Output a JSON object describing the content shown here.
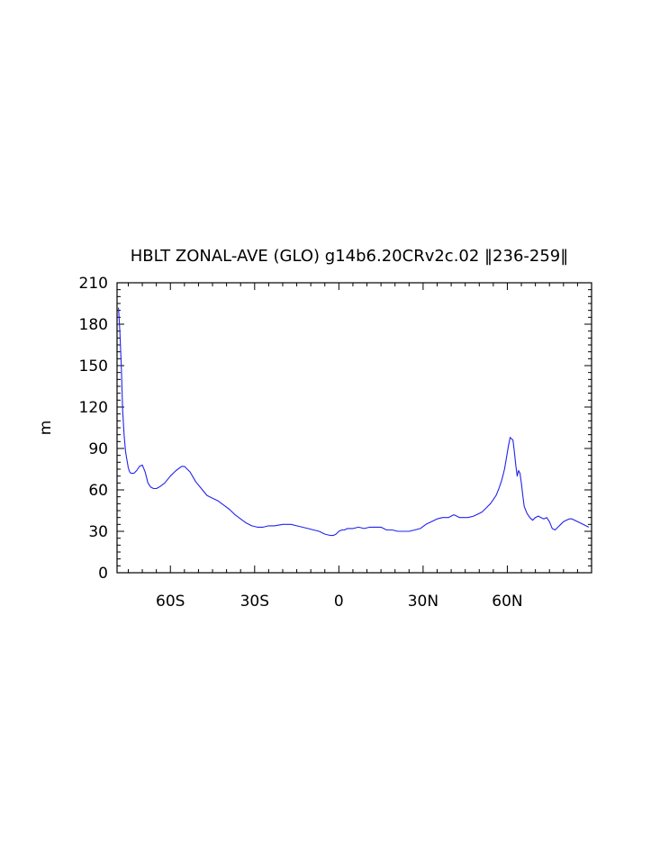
{
  "chart_data": {
    "type": "line",
    "title": "HBLT ZONAL-AVE (GLO) g14b6.20CRv2c.02 ‖236-259‖",
    "xlabel": "",
    "ylabel": "m",
    "xlim": [
      -79,
      90
    ],
    "ylim": [
      0,
      210
    ],
    "x_ticks": [
      -60,
      -30,
      0,
      30,
      60
    ],
    "x_tick_labels": [
      "60S",
      "30S",
      "0",
      "30N",
      "60N"
    ],
    "y_ticks": [
      0,
      30,
      60,
      90,
      120,
      150,
      180,
      210
    ],
    "y_tick_labels": [
      "0",
      "30",
      "60",
      "90",
      "120",
      "150",
      "180",
      "210"
    ],
    "grid": false,
    "line_color": "#2222ee",
    "series": [
      {
        "x": [
          -78.5,
          -78,
          -77.5,
          -77,
          -76.5,
          -76,
          -75.5,
          -75,
          -74.5,
          -74,
          -73.5,
          -73,
          -72,
          -71,
          -70,
          -69,
          -68,
          -67,
          -66,
          -65,
          -64,
          -62,
          -60,
          -58,
          -56,
          -55,
          -53,
          -51,
          -49,
          -47,
          -45,
          -43,
          -41,
          -39,
          -37,
          -35,
          -33,
          -31,
          -29,
          -27,
          -25,
          -23,
          -20,
          -17,
          -15,
          -13,
          -11,
          -9,
          -7,
          -5,
          -3,
          -2,
          -1,
          0,
          1,
          2,
          3,
          5,
          7,
          9,
          11,
          13,
          15,
          17,
          19,
          21,
          23,
          25,
          27,
          29,
          31,
          33,
          35,
          37,
          39,
          40,
          41,
          42,
          43,
          44,
          46,
          48,
          50,
          51,
          52,
          53,
          54,
          55,
          56,
          57,
          58,
          58.5,
          59,
          59.5,
          60,
          60.5,
          61,
          61.5,
          62,
          62.5,
          63,
          63.5,
          64,
          64.5,
          65,
          65.5,
          66,
          67,
          68,
          69,
          70,
          71,
          72,
          73,
          74,
          75,
          76,
          77,
          78,
          79,
          80,
          81,
          82,
          83,
          84,
          85,
          86,
          87,
          88,
          89
        ],
        "y": [
          192,
          175,
          150,
          118,
          100,
          88,
          82,
          76,
          73,
          72,
          72,
          72,
          74,
          77,
          78,
          73,
          65,
          62,
          61,
          61,
          62,
          65,
          70,
          74,
          77,
          77,
          73,
          66,
          61,
          56,
          54,
          52,
          49,
          46,
          42,
          39,
          36,
          34,
          33,
          33,
          34,
          34,
          35,
          35,
          34,
          33,
          32,
          31,
          30,
          28,
          27,
          27,
          28,
          30,
          31,
          31,
          32,
          32,
          33,
          32,
          33,
          33,
          33,
          31,
          31,
          30,
          30,
          30,
          31,
          32,
          35,
          37,
          39,
          40,
          40,
          41,
          42,
          41,
          40,
          40,
          40,
          41,
          43,
          44,
          46,
          48,
          50,
          53,
          56,
          61,
          67,
          71,
          75,
          81,
          87,
          93,
          98,
          97,
          96,
          88,
          78,
          70,
          74,
          72,
          65,
          56,
          48,
          43,
          40,
          38,
          40,
          41,
          40,
          39,
          40,
          37,
          32,
          31,
          33,
          35,
          37,
          38,
          39,
          39,
          38,
          37,
          36,
          35,
          34,
          33
        ]
      }
    ]
  }
}
